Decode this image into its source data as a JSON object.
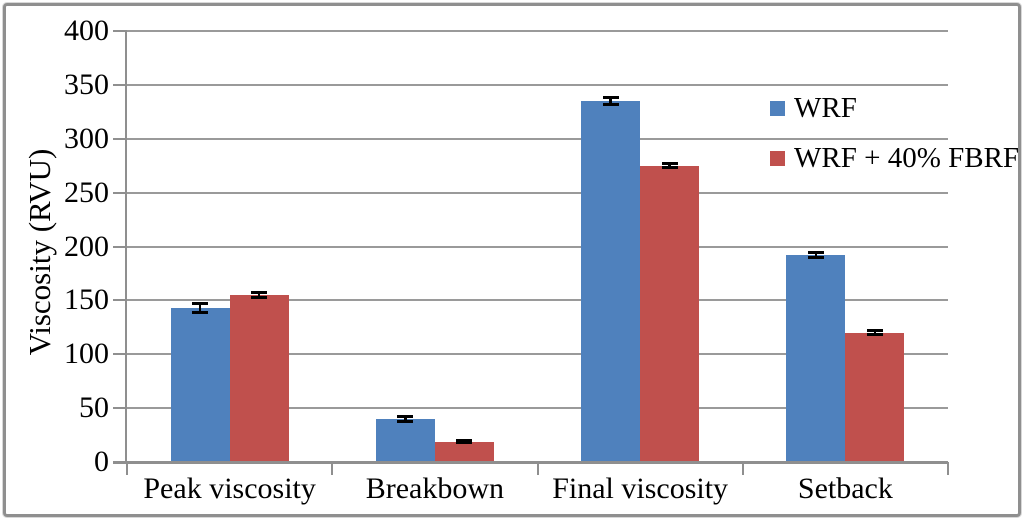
{
  "chart_data": {
    "type": "bar",
    "title": "",
    "categories": [
      "Peak viscosity",
      "Breakbown",
      "Final viscosity",
      "Setback"
    ],
    "series": [
      {
        "name": "WRF",
        "color": "#4F81BD",
        "values": [
          143,
          40,
          335,
          192
        ],
        "errors": [
          4,
          2,
          3,
          2
        ]
      },
      {
        "name": "WRF + 40% FBRF",
        "color": "#C0504D",
        "values": [
          155,
          19,
          275,
          120
        ],
        "errors": [
          2,
          1,
          2,
          2
        ]
      }
    ],
    "xlabel": "",
    "ylabel": "Viscosity (RVU)",
    "ylim": [
      0,
      400
    ],
    "ytick_step": 50,
    "ytick_labels": [
      "0",
      "50",
      "100",
      "150",
      "200",
      "250",
      "300",
      "350",
      "400"
    ],
    "grid": true,
    "error_bars": true,
    "legend_position": "inside-top-right"
  },
  "style": {
    "background": "#ffffff",
    "gridline_color": "#9a9a9a",
    "axis_color": "#8f8f8f",
    "frame_border_color": "#8f8f8f",
    "text_color": "#000000",
    "error_bar_color": "#000000"
  }
}
